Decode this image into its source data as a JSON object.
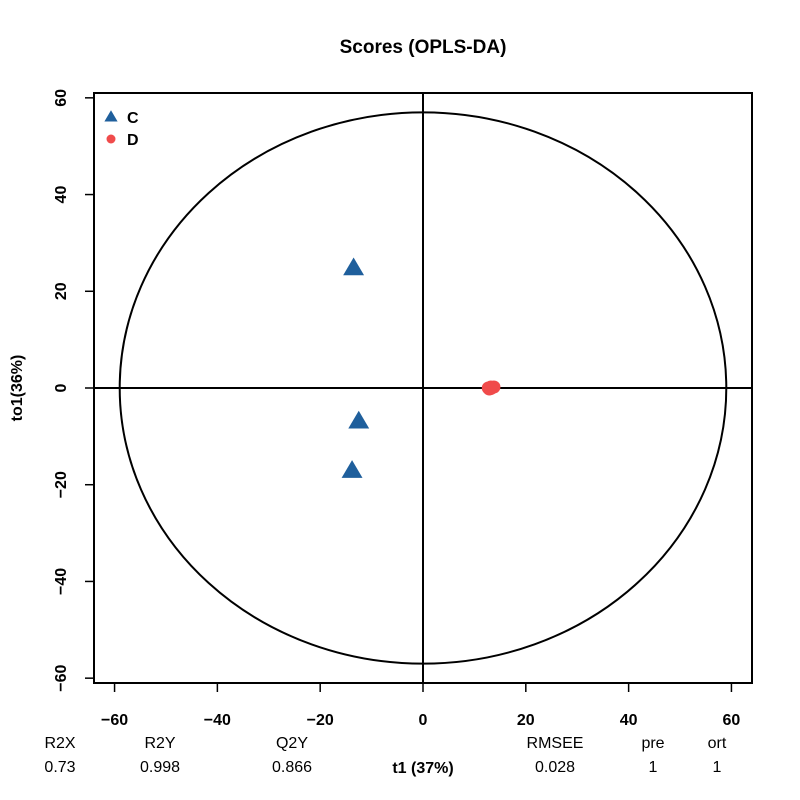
{
  "chart_data": {
    "type": "scatter",
    "title": "Scores (OPLS-DA)",
    "xlabel": "t1 (37%)",
    "ylabel": "to1(36%)",
    "xlim": [
      -64,
      64
    ],
    "ylim": [
      -61,
      61
    ],
    "x_ticks": [
      -60,
      -40,
      -20,
      0,
      20,
      40,
      60
    ],
    "y_ticks": [
      -60,
      -40,
      -20,
      0,
      20,
      40,
      60
    ],
    "x_tick_labels": [
      "−60",
      "−40",
      "−20",
      "0",
      "20",
      "40",
      "60"
    ],
    "y_tick_labels": [
      "−60",
      "−40",
      "−20",
      "0",
      "20",
      "40",
      "60"
    ],
    "legend_position": "top-left",
    "reference_lines": {
      "x": 0,
      "y": 0
    },
    "ellipse": {
      "cx": 0,
      "cy": 0,
      "rx": 59,
      "ry": 57
    },
    "series": [
      {
        "name": "C",
        "marker": "triangle",
        "color": "#1f5f9c",
        "points": [
          [
            -13.5,
            24.8
          ],
          [
            -12.5,
            -6.9
          ],
          [
            -13.8,
            -17.1
          ]
        ]
      },
      {
        "name": "D",
        "marker": "circle",
        "color": "#f04b4b",
        "points": [
          [
            12.7,
            0.0
          ],
          [
            13.2,
            -0.1
          ],
          [
            13.8,
            0.2
          ],
          [
            13.2,
            0.2
          ],
          [
            12.9,
            -0.2
          ]
        ]
      }
    ]
  },
  "stats": {
    "headers": [
      "R2X",
      "R2Y",
      "Q2Y",
      "RMSEE",
      "pre",
      "ort"
    ],
    "values": [
      "0.73",
      "0.998",
      "0.866",
      "0.028",
      "1",
      "1"
    ]
  }
}
